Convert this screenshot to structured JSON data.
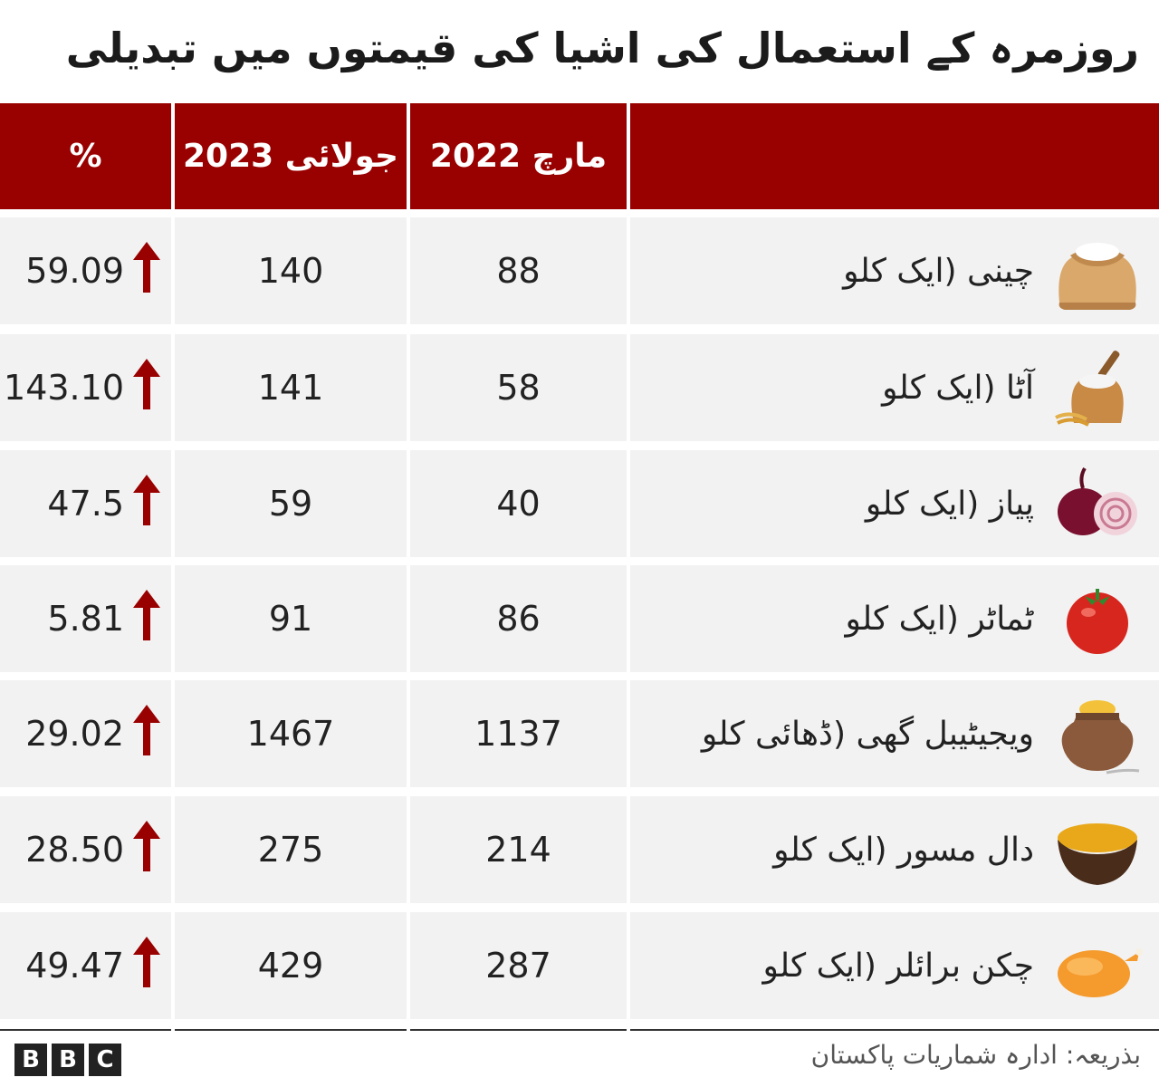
{
  "title": "روزمرہ کے استعمال کی اشیا کی قیمتوں میں تبدیلی",
  "table": {
    "headers": {
      "pct": "%",
      "july2023": "جولائی 2023",
      "march2022": "مارچ 2022",
      "item": ""
    },
    "rows": [
      {
        "pct": "59.09",
        "july2023": "140",
        "march2022": "88",
        "item": "چینی (ایک کلو",
        "icon": "sugar-sack-icon"
      },
      {
        "pct": "143.10",
        "july2023": "141",
        "march2022": "58",
        "item": "آٹا (ایک کلو",
        "icon": "flour-sack-icon"
      },
      {
        "pct": "47.5",
        "july2023": "59",
        "march2022": "40",
        "item": "پیاز (ایک کلو",
        "icon": "onion-icon"
      },
      {
        "pct": "5.81",
        "july2023": "91",
        "march2022": "86",
        "item": "ٹماٹر (ایک کلو",
        "icon": "tomato-icon"
      },
      {
        "pct": "29.02",
        "july2023": "1467",
        "march2022": "1137",
        "item": "ویجیٹیبل گھی (ڈھائی کلو",
        "icon": "ghee-pot-icon"
      },
      {
        "pct": "28.50",
        "july2023": "275",
        "march2022": "214",
        "item": "دال مسور (ایک کلو",
        "icon": "lentil-bowl-icon"
      },
      {
        "pct": "49.47",
        "july2023": "429",
        "march2022": "287",
        "item": "چکن برائلر (ایک کلو",
        "icon": "roast-chicken-icon"
      }
    ]
  },
  "footer": {
    "logo": "BBC",
    "source": "بذریعہ: ادارہ شماریات پاکستان"
  },
  "colors": {
    "header_bg": "#990000",
    "arrow": "#990000",
    "row_bg": "#f2f2f2"
  }
}
